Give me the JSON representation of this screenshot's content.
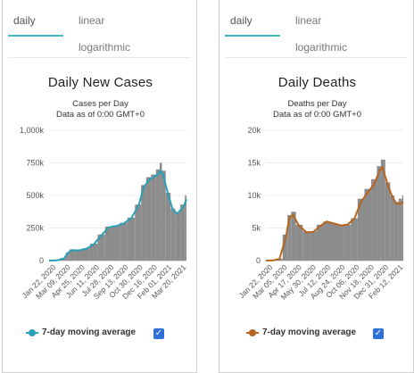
{
  "tabs": {
    "daily": "daily",
    "linear": "linear",
    "logarithmic": "logarithmic"
  },
  "colors": {
    "bars": "#8c8c8c",
    "cases_avg": "#2a9fb8",
    "deaths_avg": "#b5651d",
    "tab_active": "#3fb8c6",
    "checkbox": "#2f6fd6"
  },
  "chart_data": [
    {
      "type": "bar",
      "title": "Daily New Cases",
      "subtitle": "Cases per Day",
      "subtitle2": "Data as of 0:00 GMT+0",
      "ylim": [
        0,
        1000000
      ],
      "yticks": [
        0,
        250000,
        500000,
        750000,
        1000000
      ],
      "yticklabels": [
        "0",
        "250k",
        "500k",
        "750k",
        "1,000k"
      ],
      "xticklabels": [
        "Jan 22, 2020",
        "Mar 09, 2020",
        "Apr 25, 2020",
        "Jun 11, 2020",
        "Jul 28, 2020",
        "Sep 13, 2020",
        "Oct 30, 2020",
        "Dec 16, 2020",
        "Feb 01, 2021",
        "Mar 20, 2021"
      ],
      "x": [
        "2020-01-22",
        "2020-02-15",
        "2020-03-09",
        "2020-03-20",
        "2020-04-01",
        "2020-04-25",
        "2020-05-18",
        "2020-06-11",
        "2020-07-05",
        "2020-07-28",
        "2020-08-20",
        "2020-09-13",
        "2020-10-07",
        "2020-10-30",
        "2020-11-15",
        "2020-12-01",
        "2020-12-16",
        "2021-01-01",
        "2021-01-08",
        "2021-01-15",
        "2021-02-01",
        "2021-02-15",
        "2021-03-01",
        "2021-03-20",
        "2021-03-30"
      ],
      "values": [
        0,
        2000,
        20000,
        60000,
        85000,
        80000,
        95000,
        130000,
        200000,
        260000,
        270000,
        290000,
        330000,
        430000,
        580000,
        640000,
        660000,
        700000,
        750000,
        690000,
        520000,
        400000,
        370000,
        430000,
        500000
      ],
      "series": [
        {
          "name": "7-day moving average",
          "values": [
            0,
            1500,
            15000,
            55000,
            80000,
            78000,
            90000,
            125000,
            195000,
            255000,
            265000,
            285000,
            325000,
            420000,
            560000,
            620000,
            640000,
            665000,
            690000,
            660000,
            500000,
            390000,
            360000,
            410000,
            470000
          ]
        }
      ],
      "legend": {
        "label": "7-day moving average",
        "checked": true
      },
      "colors": {
        "bars": "#8c8c8c",
        "line": "#2a9fb8"
      }
    },
    {
      "type": "bar",
      "title": "Daily Deaths",
      "subtitle": "Deaths per Day",
      "subtitle2": "Data as of 0:00 GMT+0",
      "ylim": [
        0,
        20000
      ],
      "yticks": [
        0,
        5000,
        10000,
        15000,
        20000
      ],
      "yticklabels": [
        "0",
        "5k",
        "10k",
        "15k",
        "20k"
      ],
      "xticklabels": [
        "Jan 22, 2020",
        "Mar 05, 2020",
        "Apr 17, 2020",
        "May 30, 2020",
        "Jul 12, 2020",
        "Aug 24, 2020",
        "Oct 06, 2020",
        "Nov 18, 2020",
        "Dec 31, 2020",
        "Feb 12, 2021"
      ],
      "x": [
        "2020-01-22",
        "2020-02-15",
        "2020-03-05",
        "2020-03-25",
        "2020-04-05",
        "2020-04-17",
        "2020-05-05",
        "2020-05-30",
        "2020-06-20",
        "2020-07-12",
        "2020-08-01",
        "2020-08-24",
        "2020-09-15",
        "2020-10-06",
        "2020-10-28",
        "2020-11-18",
        "2020-12-10",
        "2020-12-31",
        "2021-01-15",
        "2021-01-25",
        "2021-02-12",
        "2021-02-25",
        "2021-03-10",
        "2021-03-25",
        "2021-04-01"
      ],
      "values": [
        0,
        50,
        300,
        4000,
        7000,
        7500,
        5500,
        4500,
        4500,
        5500,
        6000,
        5700,
        5500,
        5500,
        6500,
        9500,
        11000,
        12500,
        14500,
        15500,
        12000,
        10000,
        9000,
        9500,
        10000
      ],
      "series": [
        {
          "name": "7-day moving average",
          "values": [
            0,
            40,
            250,
            3500,
            6500,
            7000,
            5400,
            4300,
            4400,
            5300,
            6000,
            5700,
            5400,
            5500,
            6400,
            9000,
            10500,
            11800,
            13800,
            14300,
            11500,
            9800,
            8800,
            8700,
            9000
          ]
        }
      ],
      "legend": {
        "label": "7-day moving average",
        "checked": true
      },
      "colors": {
        "bars": "#8c8c8c",
        "line": "#b5651d"
      }
    }
  ]
}
